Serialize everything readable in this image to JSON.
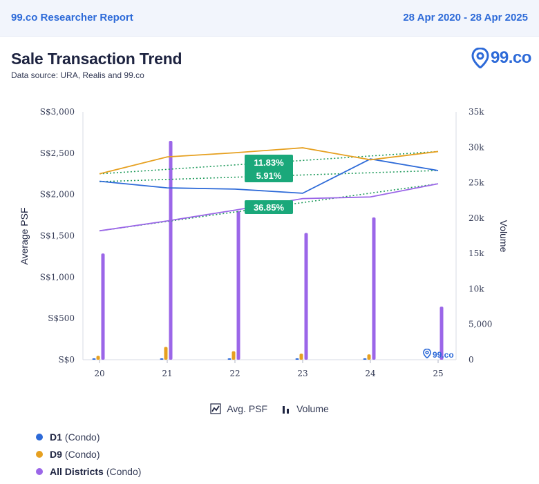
{
  "header": {
    "report_title": "99.co Researcher Report",
    "date_range": "28 Apr 2020 - 28 Apr 2025"
  },
  "title": "Sale Transaction Trend",
  "subtitle": "Data source: URA, Realis and 99.co",
  "logo": {
    "text": "99.co",
    "watermark": "99.co"
  },
  "legend": {
    "avg_psf": "Avg. PSF",
    "volume": "Volume"
  },
  "series_legend": [
    {
      "name": "D1",
      "type": "(Condo)",
      "color": "#2d6ad8"
    },
    {
      "name": "D9",
      "type": "(Condo)",
      "color": "#e6a020"
    },
    {
      "name": "All Districts",
      "type": "(Condo)",
      "color": "#9b66e8"
    }
  ],
  "chart_data": {
    "type": "bar+line",
    "categories": [
      "20",
      "21",
      "22",
      "23",
      "24",
      "25"
    ],
    "y_left": {
      "label": "Average PSF",
      "range": [
        0,
        3000
      ],
      "ticks": [
        "S$0",
        "S$500",
        "S$1,000",
        "S$1,500",
        "S$2,000",
        "S$2,500",
        "S$3,000"
      ]
    },
    "y_right": {
      "label": "Volume",
      "range": [
        0,
        35000
      ],
      "ticks": [
        "0",
        "5,000",
        "10k",
        "15k",
        "20k",
        "25k",
        "30k",
        "35k"
      ]
    },
    "psf_series": [
      {
        "name": "D1",
        "color": "#2d6ad8",
        "values": [
          2160,
          2080,
          2065,
          2015,
          2430,
          2290
        ]
      },
      {
        "name": "D9",
        "color": "#e6a020",
        "values": [
          2250,
          2455,
          2505,
          2565,
          2420,
          2520
        ]
      },
      {
        "name": "All Districts",
        "color": "#9b66e8",
        "values": [
          1560,
          1680,
          1810,
          1950,
          1970,
          2130
        ]
      }
    ],
    "trend_lines": [
      {
        "series": "D9",
        "start": 2250,
        "end": 2520
      },
      {
        "series": "D1",
        "start": 2155,
        "end": 2290
      },
      {
        "series": "All Districts",
        "start": 1560,
        "end": 2130
      }
    ],
    "volume_series": [
      {
        "name": "D1",
        "color": "#2d6ad8",
        "values": [
          120,
          200,
          80,
          100,
          180,
          0
        ]
      },
      {
        "name": "D9",
        "color": "#e6a020",
        "values": [
          550,
          1800,
          1200,
          850,
          750,
          0
        ]
      },
      {
        "name": "All Districts",
        "color": "#9b66e8",
        "values": [
          15000,
          30900,
          21000,
          17900,
          20100,
          7500
        ]
      }
    ],
    "annotations": [
      {
        "label": "11.83%",
        "series": "D9"
      },
      {
        "label": "5.91%",
        "series": "D1"
      },
      {
        "label": "36.85%",
        "series": "All Districts"
      }
    ]
  }
}
